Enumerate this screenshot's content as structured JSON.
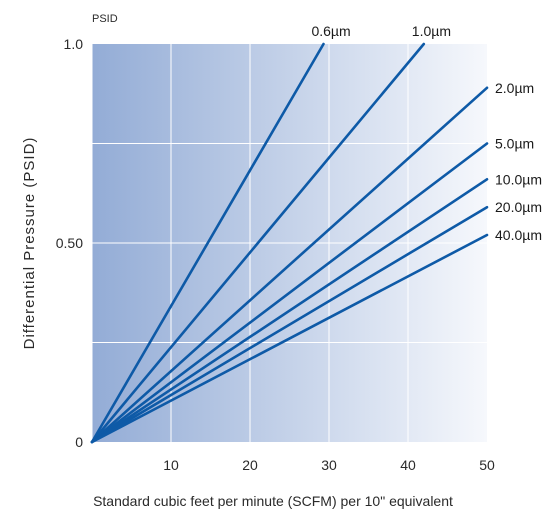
{
  "chart_data": {
    "type": "line",
    "ylabel": "Differential Pressure (PSID)",
    "y_unit_label": "PSID",
    "xlabel": "Standard cubic feet per minute (SCFM) per 10\" equivalent",
    "xlim": [
      0,
      50
    ],
    "ylim": [
      0,
      1.0
    ],
    "x_ticks": [
      "10",
      "20",
      "30",
      "40",
      "50"
    ],
    "y_ticks": [
      "0",
      "0.50",
      "1.0"
    ],
    "grid": true,
    "series": [
      {
        "name": "0.6µm",
        "x": [
          0,
          29.3
        ],
        "y": [
          0,
          1.0
        ]
      },
      {
        "name": "1.0µm",
        "x": [
          0,
          42.0
        ],
        "y": [
          0,
          1.0
        ]
      },
      {
        "name": "2.0µm",
        "x": [
          0,
          50
        ],
        "y": [
          0,
          0.89
        ]
      },
      {
        "name": "5.0µm",
        "x": [
          0,
          50
        ],
        "y": [
          0,
          0.75
        ]
      },
      {
        "name": "10.0µm",
        "x": [
          0,
          50
        ],
        "y": [
          0,
          0.66
        ]
      },
      {
        "name": "20.0µm",
        "x": [
          0,
          50
        ],
        "y": [
          0,
          0.59
        ]
      },
      {
        "name": "40.0µm",
        "x": [
          0,
          50
        ],
        "y": [
          0,
          0.52
        ]
      }
    ],
    "colors": {
      "line": "#0e5aa7",
      "bg_left": "#93acd6",
      "bg_right": "#f6f8fc",
      "grid": "#ffffff"
    }
  }
}
